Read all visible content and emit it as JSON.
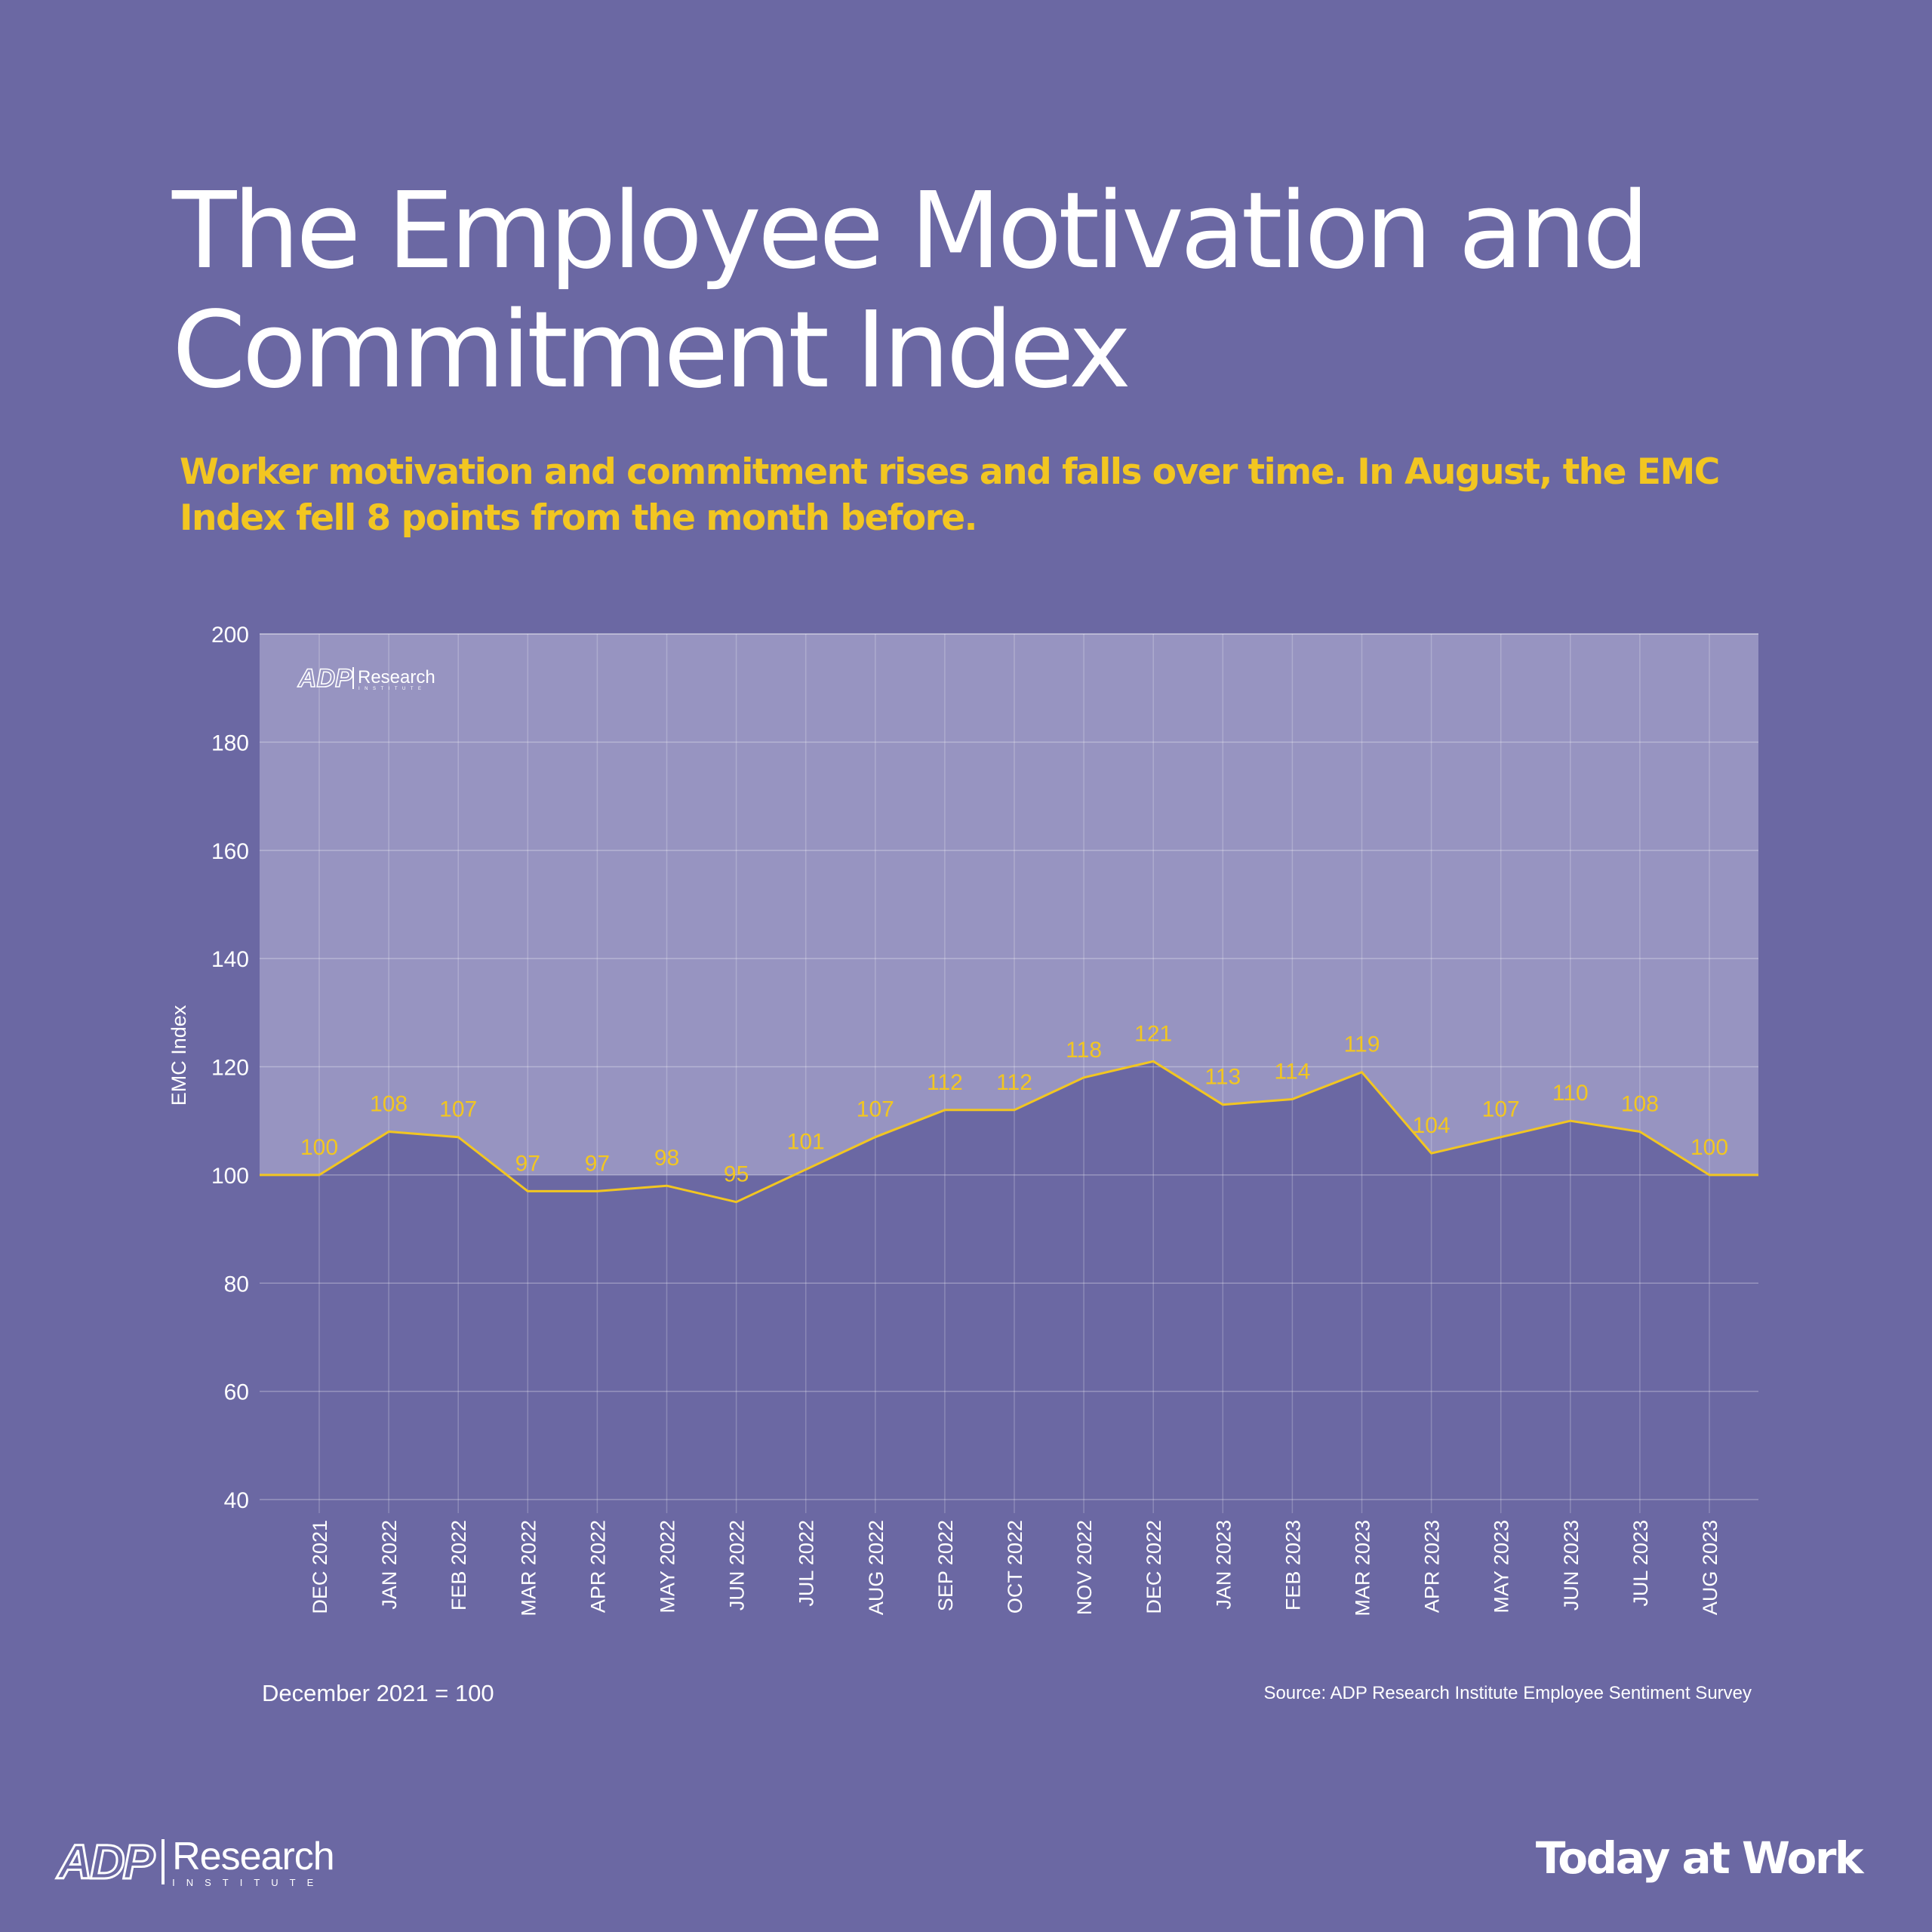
{
  "title": "The Employee Motivation and Commitment Index",
  "subtitle": "Worker motivation and commitment rises and falls over time. In August, the EMC Index fell 8 points from the month before.",
  "footnote_left": "December 2021 = 100",
  "footnote_right": "Source: ADP Research Institute Employee Sentiment Survey",
  "brand": {
    "logo_word": "ADP",
    "logo_sub": "Research",
    "logo_sub_small": "INSTITUTE",
    "tagline": "Today at Work"
  },
  "colors": {
    "background": "#6b68a3",
    "plot_upper": "#9794c1",
    "line": "#f2c621",
    "text": "#ffffff"
  },
  "chart_data": {
    "type": "area",
    "title": "",
    "xlabel": "",
    "ylabel": "EMC Index",
    "ylim": [
      40,
      200
    ],
    "yticks": [
      40,
      60,
      80,
      100,
      120,
      140,
      160,
      180,
      200
    ],
    "grid": true,
    "baseline": 100,
    "categories": [
      "DEC 2021",
      "JAN 2022",
      "FEB 2022",
      "MAR 2022",
      "APR 2022",
      "MAY 2022",
      "JUN 2022",
      "JUL 2022",
      "AUG 2022",
      "SEP 2022",
      "OCT 2022",
      "NOV 2022",
      "DEC 2022",
      "JAN 2023",
      "FEB 2023",
      "MAR 2023",
      "APR 2023",
      "MAY 2023",
      "JUN 2023",
      "JUL 2023",
      "AUG 2023"
    ],
    "series": [
      {
        "values": [
          100,
          108,
          107,
          97,
          97,
          98,
          95,
          101,
          107,
          112,
          112,
          118,
          121,
          113,
          114,
          119,
          104,
          107,
          110,
          108,
          100
        ]
      }
    ]
  }
}
